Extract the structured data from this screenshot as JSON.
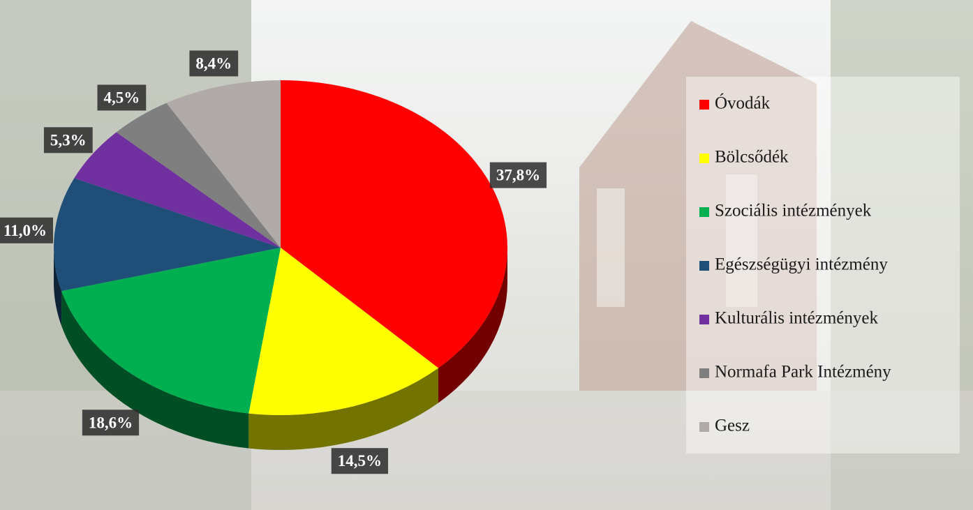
{
  "chart_data": {
    "type": "pie",
    "categories": [
      "Óvodák",
      "Bölcsődék",
      "Szociális intézmények",
      "Egészségügyi intézmény",
      "Kulturális intézmények",
      "Normafa Park Intézmény",
      "Gesz"
    ],
    "values": [
      37.8,
      14.5,
      18.6,
      11.0,
      5.3,
      4.5,
      8.4
    ],
    "value_labels": [
      "37,8%",
      "14,5%",
      "18,6%",
      "11,0%",
      "5,3%",
      "4,5%",
      "8,4%"
    ],
    "colors": [
      "#ff0000",
      "#ffff00",
      "#00b050",
      "#1f4e79",
      "#7030a0",
      "#7f7f7f",
      "#b0aaa8"
    ],
    "legend": "right"
  }
}
